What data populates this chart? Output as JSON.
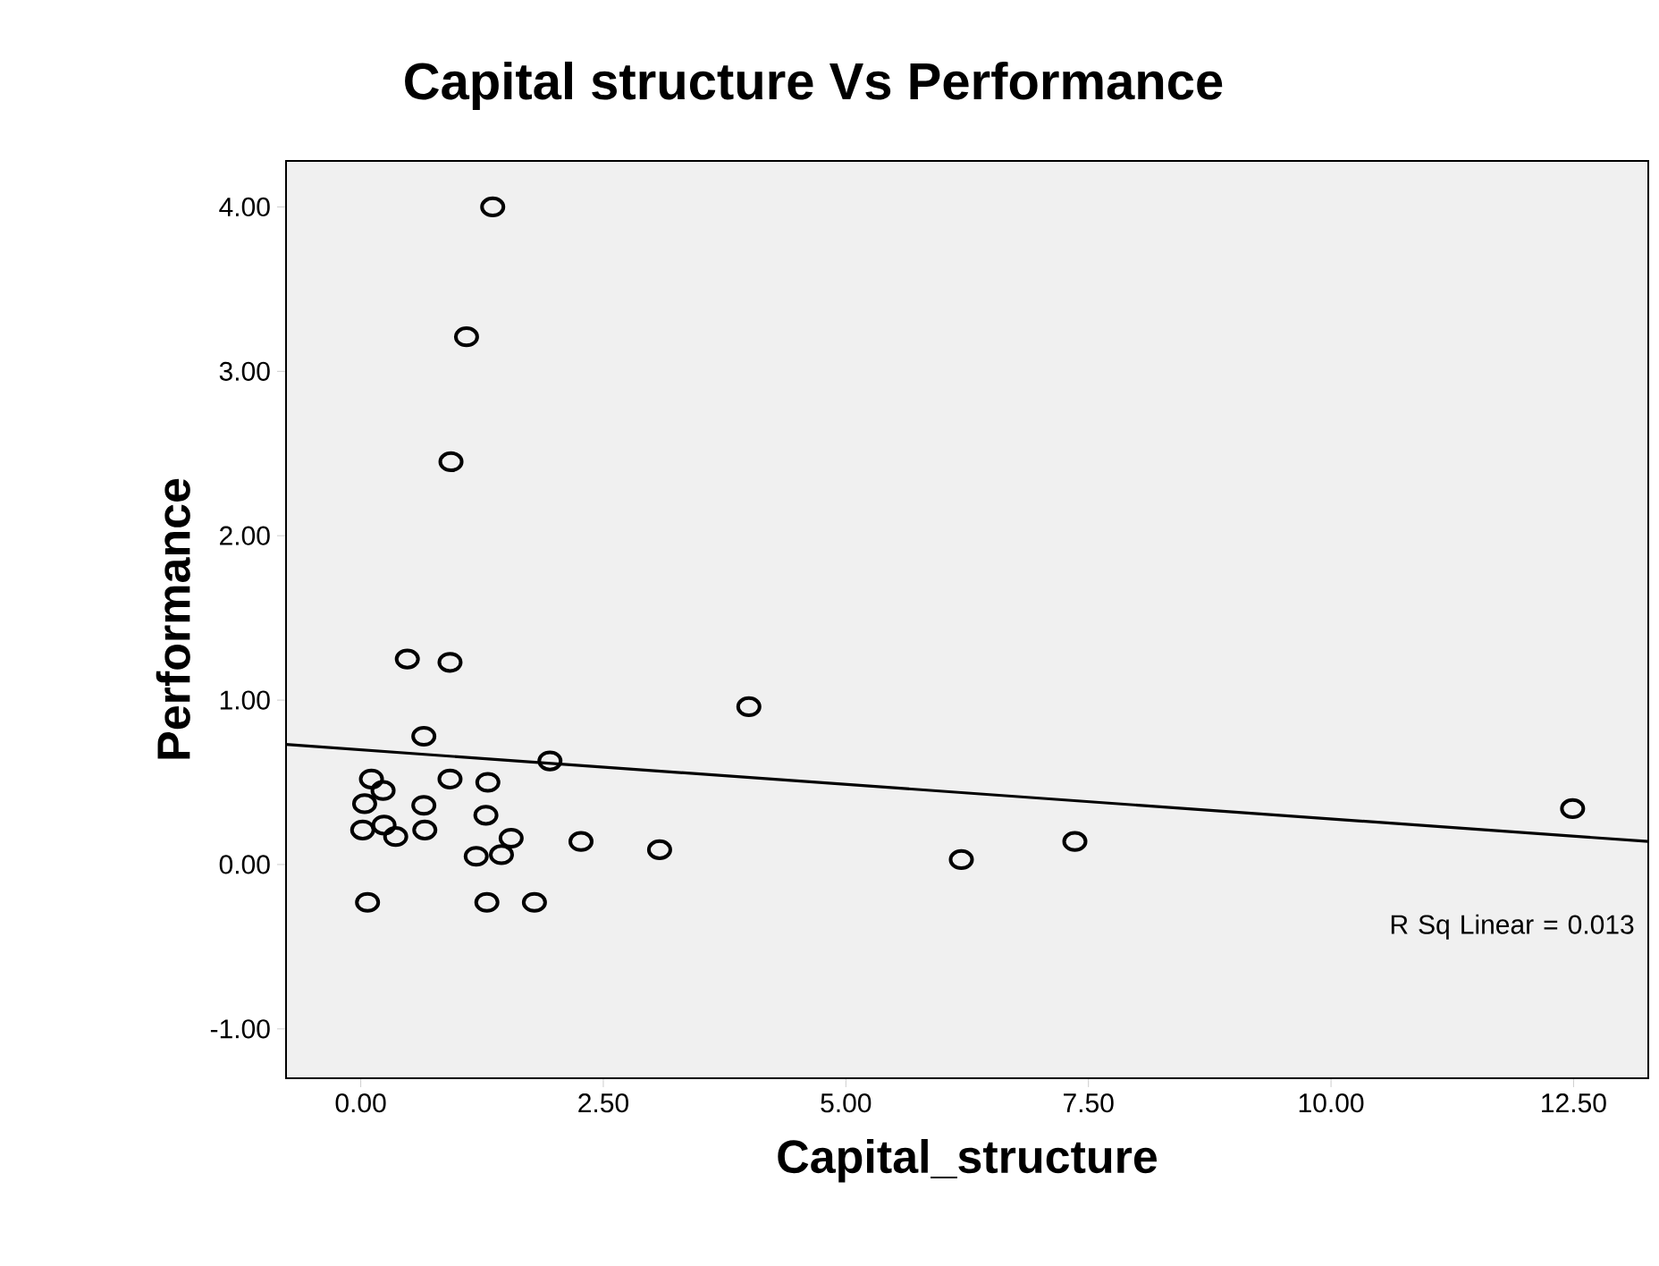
{
  "chart_data": {
    "type": "scatter",
    "title": "Capital structure Vs Performance",
    "xlabel": "Capital_structure",
    "ylabel": "Performance",
    "xlim": [
      -0.77,
      13.27
    ],
    "ylim": [
      -1.3,
      4.28
    ],
    "xticks": [
      {
        "value": 0,
        "label": "0.00"
      },
      {
        "value": 2.5,
        "label": "2.50"
      },
      {
        "value": 5,
        "label": "5.00"
      },
      {
        "value": 7.5,
        "label": "7.50"
      },
      {
        "value": 10,
        "label": "10.00"
      },
      {
        "value": 12.5,
        "label": "12.50"
      }
    ],
    "yticks": [
      {
        "value": -1,
        "label": "-1.00"
      },
      {
        "value": 0,
        "label": "0.00"
      },
      {
        "value": 1,
        "label": "1.00"
      },
      {
        "value": 2,
        "label": "2.00"
      },
      {
        "value": 3,
        "label": "3.00"
      },
      {
        "value": 4,
        "label": "4.00"
      }
    ],
    "grid": false,
    "marker": "circle",
    "annotations": [
      "R Sq Linear = 0.013"
    ],
    "series": [
      {
        "type": "scatter",
        "color": "#000000",
        "x": [
          1.36,
          1.09,
          0.93,
          0.48,
          0.92,
          0.65,
          1.95,
          4.0,
          0.11,
          0.23,
          0.92,
          1.31,
          0.04,
          0.65,
          1.29,
          0.02,
          0.24,
          0.36,
          0.66,
          1.55,
          1.19,
          1.45,
          2.27,
          3.08,
          0.07,
          1.3,
          1.79,
          6.19,
          7.36,
          12.49
        ],
        "values": [
          4.0,
          3.21,
          2.45,
          1.25,
          1.23,
          0.78,
          0.63,
          0.96,
          0.52,
          0.45,
          0.52,
          0.5,
          0.37,
          0.36,
          0.3,
          0.21,
          0.24,
          0.17,
          0.21,
          0.16,
          0.05,
          0.06,
          0.14,
          0.09,
          -0.23,
          -0.23,
          -0.23,
          0.03,
          0.14,
          0.34
        ]
      },
      {
        "type": "line",
        "color": "#000000",
        "marker": "none",
        "x": [
          -0.77,
          13.27
        ],
        "values": [
          0.73,
          0.14
        ]
      }
    ]
  }
}
